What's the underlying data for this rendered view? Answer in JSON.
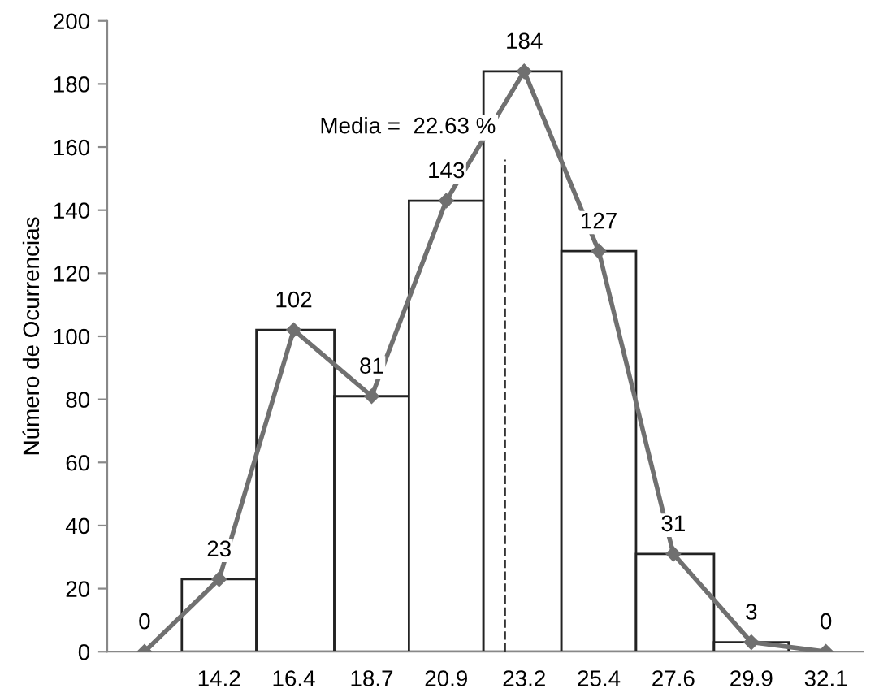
{
  "chart_data": {
    "type": "histogram",
    "ylabel": "Número de Ocurrencias",
    "bins": [
      13.1,
      15.3,
      17.6,
      19.8,
      22.0,
      24.3,
      26.5,
      28.8,
      31.0
    ],
    "values": [
      23,
      102,
      81,
      143,
      184,
      127,
      31,
      3
    ],
    "color": "#ffffff",
    "series": [
      {
        "type": "line",
        "color": "#707070",
        "x": [
          12.0,
          14.2,
          16.4,
          18.7,
          20.9,
          23.2,
          25.4,
          27.6,
          29.9,
          32.1
        ],
        "values": [
          0,
          23,
          102,
          81,
          143,
          184,
          127,
          31,
          3,
          0
        ],
        "data_labels": true,
        "marker": "diamond"
      }
    ],
    "xlim": [
      10.9,
      33.2
    ],
    "xticks": [
      14.2,
      16.4,
      18.7,
      20.9,
      23.2,
      25.4,
      27.6,
      29.9,
      32.1
    ],
    "ylim": [
      0,
      200
    ],
    "yticks": [
      0,
      20,
      40,
      60,
      80,
      100,
      120,
      140,
      160,
      180,
      200
    ],
    "ref_lines": [
      {
        "axis": "x",
        "value": 22.63,
        "label": "Media =  22.63 %",
        "line_style": "dashed",
        "color": "#333333"
      }
    ],
    "grid": false,
    "legend": false
  }
}
